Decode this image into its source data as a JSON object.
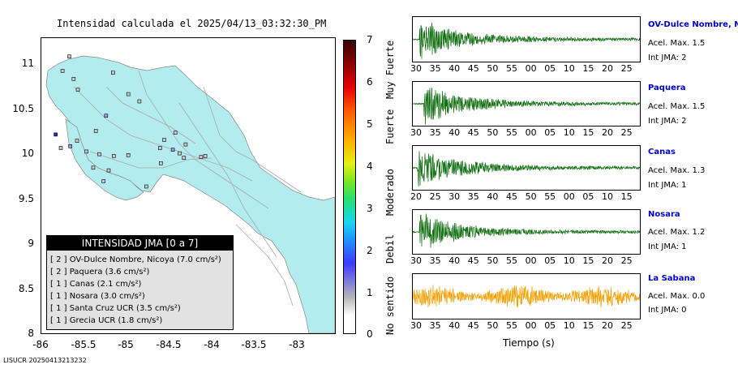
{
  "map": {
    "title": "Intensidad calculada el 2025/04/13_03:32:30_PM",
    "lat_ticks": [
      "11",
      "10.5",
      "10",
      "9.5",
      "9",
      "8.5",
      "8"
    ],
    "lon_ticks": [
      "-86",
      "-85.5",
      "-85",
      "-84.5",
      "-84",
      "-83.5",
      "-83"
    ],
    "land_color": "#b2ecee",
    "stations": [
      {
        "lon": -85.54,
        "lat": 11.09,
        "intensity": 1
      },
      {
        "lon": -85.62,
        "lat": 10.93,
        "intensity": 1
      },
      {
        "lon": -85.49,
        "lat": 10.84,
        "intensity": 1
      },
      {
        "lon": -85.44,
        "lat": 10.72,
        "intensity": 1
      },
      {
        "lon": -85.03,
        "lat": 10.91,
        "intensity": 1
      },
      {
        "lon": -84.85,
        "lat": 10.67,
        "intensity": 1
      },
      {
        "lon": -84.72,
        "lat": 10.59,
        "intensity": 1
      },
      {
        "lon": -85.11,
        "lat": 10.43,
        "intensity": 2
      },
      {
        "lon": -85.23,
        "lat": 10.26,
        "intensity": 1
      },
      {
        "lon": -85.45,
        "lat": 10.15,
        "intensity": 1
      },
      {
        "lon": -85.53,
        "lat": 10.09,
        "intensity": 2
      },
      {
        "lon": -85.64,
        "lat": 10.07,
        "intensity": 1
      },
      {
        "lon": -85.34,
        "lat": 10.03,
        "intensity": 1
      },
      {
        "lon": -85.19,
        "lat": 10.0,
        "intensity": 1
      },
      {
        "lon": -85.02,
        "lat": 9.98,
        "intensity": 1
      },
      {
        "lon": -84.85,
        "lat": 9.99,
        "intensity": 1
      },
      {
        "lon": -84.43,
        "lat": 10.16,
        "intensity": 1
      },
      {
        "lon": -84.48,
        "lat": 10.07,
        "intensity": 1
      },
      {
        "lon": -84.3,
        "lat": 10.24,
        "intensity": 1
      },
      {
        "lon": -84.33,
        "lat": 10.05,
        "intensity": 2
      },
      {
        "lon": -84.25,
        "lat": 10.01,
        "intensity": 1
      },
      {
        "lon": -84.2,
        "lat": 9.96,
        "intensity": 1
      },
      {
        "lon": -84.0,
        "lat": 9.97,
        "intensity": 1
      },
      {
        "lon": -83.95,
        "lat": 9.98,
        "intensity": 1
      },
      {
        "lon": -84.47,
        "lat": 9.9,
        "intensity": 1
      },
      {
        "lon": -85.08,
        "lat": 9.82,
        "intensity": 1
      },
      {
        "lon": -85.14,
        "lat": 9.7,
        "intensity": 1
      },
      {
        "lon": -84.64,
        "lat": 9.64,
        "intensity": 1
      },
      {
        "lon": -85.26,
        "lat": 9.85,
        "intensity": 1
      },
      {
        "lon": -84.18,
        "lat": 10.11,
        "intensity": 1
      },
      {
        "lon": -85.7,
        "lat": 10.22,
        "intensity": 3
      }
    ]
  },
  "legend": {
    "title": "INTENSIDAD JMA [0 a 7]",
    "rows": [
      {
        "level": "[ 2 ]",
        "text": "OV-Dulce Nombre, Nicoya (7.0 cm/s²)"
      },
      {
        "level": "[ 2 ]",
        "text": "Paquera (3.6 cm/s²)"
      },
      {
        "level": "[ 1 ]",
        "text": "Canas (2.1 cm/s²)"
      },
      {
        "level": "[ 1 ]",
        "text": "Nosara (3.0 cm/s²)"
      },
      {
        "level": "[ 1 ]",
        "text": "Santa Cruz UCR (3.5 cm/s²)"
      },
      {
        "level": "[ 1 ]",
        "text": "Grecia UCR (1.8 cm/s²)"
      }
    ]
  },
  "colorbar": {
    "ticks": [
      "7",
      "6",
      "5",
      "4",
      "3",
      "2",
      "1",
      "0"
    ],
    "labels": [
      "Muy Fuerte",
      "Fuerte",
      "Moderado",
      "Debil",
      "No sentido"
    ]
  },
  "waveforms": [
    {
      "name": "OV-Dulce Nombre, Nicoya",
      "accel": "Acel. Max. 1.5",
      "int": "Int JMA: 2",
      "color": "#0b6b0b",
      "ticks": [
        "30",
        "35",
        "40",
        "45",
        "50",
        "55",
        "00",
        "05",
        "10",
        "15",
        "20",
        "25"
      ],
      "start": 0.03
    },
    {
      "name": "Paquera",
      "accel": "Acel. Max. 1.5",
      "int": "Int JMA: 2",
      "color": "#0b6b0b",
      "ticks": [
        "30",
        "35",
        "40",
        "45",
        "50",
        "55",
        "00",
        "05",
        "10",
        "15",
        "20",
        "25"
      ],
      "start": 0.05
    },
    {
      "name": "Canas",
      "accel": "Acel. Max. 1.3",
      "int": "Int JMA: 1",
      "color": "#0b6b0b",
      "ticks": [
        "20",
        "25",
        "30",
        "35",
        "40",
        "45",
        "50",
        "55",
        "00",
        "05",
        "10",
        "15"
      ],
      "start": 0.02
    },
    {
      "name": "Nosara",
      "accel": "Acel. Max. 1.2",
      "int": "Int JMA: 1",
      "color": "#0b6b0b",
      "ticks": [
        "30",
        "35",
        "40",
        "45",
        "50",
        "55",
        "00",
        "05",
        "10",
        "15",
        "20",
        "25"
      ],
      "start": 0.03
    },
    {
      "name": "La Sabana",
      "accel": "Acel. Max. 0.0",
      "int": "Int JMA: 0",
      "color": "#f0a000",
      "ticks": [
        "30",
        "35",
        "40",
        "45",
        "50",
        "55",
        "00",
        "05",
        "10",
        "15",
        "20",
        "25"
      ],
      "start": 0.0
    }
  ],
  "xaxis_label": "Tiempo (s)",
  "footer": "LISUCR 20250413213232"
}
